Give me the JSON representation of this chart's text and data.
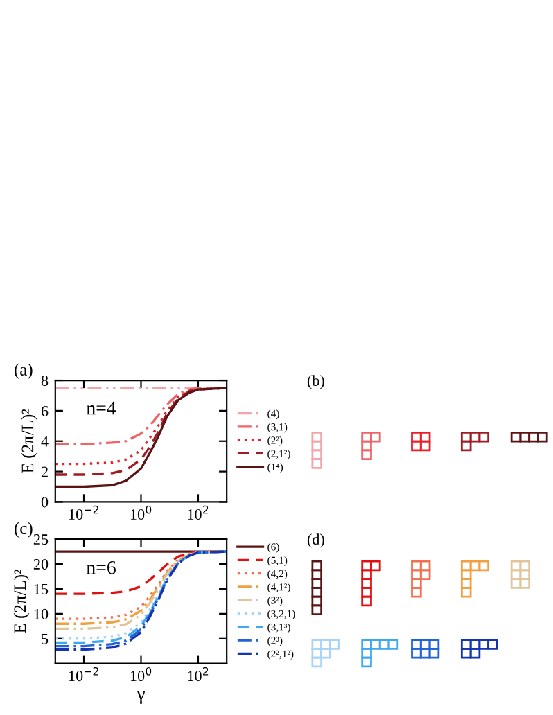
{
  "chart_data": [
    {
      "type": "line",
      "ylabel": "E (2π/L)²",
      "log": "x",
      "legend": "right",
      "grid": false,
      "xlim": [
        0.001,
        1000
      ],
      "xticks": [
        {
          "value": 0.01,
          "label": "10$^{−2}$"
        },
        {
          "value": 1,
          "label": "10$^{0}$"
        },
        {
          "value": 100,
          "label": "10$^{2}$"
        }
      ],
      "ylim": [
        0,
        8
      ],
      "yticks": [
        0,
        2,
        4,
        6,
        8
      ],
      "annotations": [
        "(a)",
        "n=4",
        "(b)"
      ],
      "x": [
        0.001,
        0.01,
        0.1,
        0.3,
        1,
        2,
        4,
        8,
        20,
        50,
        100,
        1000
      ],
      "series": [
        {
          "name": "(4)",
          "color": "#f4a3a8",
          "line_style": "dashdotdot",
          "values": [
            7.5,
            7.5,
            7.5,
            7.5,
            7.5,
            7.5,
            7.5,
            7.5,
            7.5,
            7.5,
            7.5,
            7.5
          ]
        },
        {
          "name": "(3,1)",
          "color": "#f06468",
          "line_style": "dashdot",
          "values": [
            3.8,
            3.8,
            3.9,
            4.0,
            4.5,
            5.0,
            5.7,
            6.4,
            7.1,
            7.4,
            7.5,
            7.5
          ]
        },
        {
          "name": "(2²)",
          "color": "#e8202a",
          "line_style": "dotted",
          "values": [
            2.5,
            2.5,
            2.6,
            2.8,
            3.4,
            4.2,
            5.0,
            6.0,
            6.9,
            7.3,
            7.4,
            7.5
          ]
        },
        {
          "name": "(2,1²)",
          "color": "#a01c24",
          "line_style": "dashed",
          "values": [
            1.8,
            1.8,
            1.9,
            2.1,
            2.8,
            3.6,
            4.6,
            5.8,
            6.8,
            7.3,
            7.4,
            7.5
          ]
        },
        {
          "name": "(1⁴)",
          "color": "#5a1414",
          "line_style": "solid",
          "values": [
            1.0,
            1.0,
            1.1,
            1.4,
            2.2,
            3.2,
            4.3,
            5.6,
            6.7,
            7.2,
            7.4,
            7.5
          ]
        }
      ]
    },
    {
      "type": "line",
      "ylabel": "E (2π/L)²",
      "xlabel": "γ",
      "log": "x",
      "legend": "right",
      "grid": false,
      "xlim": [
        0.001,
        1000
      ],
      "xticks": [
        {
          "value": 0.01,
          "label": "10$^{−2}$"
        },
        {
          "value": 1,
          "label": "10$^{0}$"
        },
        {
          "value": 100,
          "label": "10$^{2}$"
        }
      ],
      "ylim": [
        0,
        25
      ],
      "yticks": [
        5,
        10,
        15,
        20,
        25
      ],
      "annotations": [
        "(c)",
        "n=6",
        "(d)"
      ],
      "x": [
        0.001,
        0.01,
        0.1,
        0.3,
        1,
        2,
        4,
        8,
        20,
        50,
        100,
        1000
      ],
      "series": [
        {
          "name": "(6)",
          "color": "#5a1414",
          "line_style": "solid",
          "values": [
            22.5,
            22.5,
            22.5,
            22.5,
            22.5,
            22.5,
            22.5,
            22.5,
            22.5,
            22.5,
            22.5,
            22.5
          ]
        },
        {
          "name": "(5,1)",
          "color": "#e01010",
          "line_style": "dashed",
          "values": [
            14,
            14,
            14.2,
            14.5,
            15.5,
            16.8,
            18.3,
            19.9,
            21.5,
            22.2,
            22.4,
            22.5
          ]
        },
        {
          "name": "(4,2)",
          "color": "#f07050",
          "line_style": "dotted",
          "values": [
            9,
            9,
            9.3,
            9.8,
            11.4,
            13.5,
            15.8,
            18.5,
            20.9,
            22.0,
            22.4,
            22.5
          ]
        },
        {
          "name": "(4,1²)",
          "color": "#f0a040",
          "line_style": "dashdot",
          "values": [
            8,
            8,
            8.3,
            8.9,
            10.6,
            12.8,
            15.3,
            18.2,
            20.8,
            21.9,
            22.4,
            22.5
          ]
        },
        {
          "name": "(3²)",
          "color": "#e0c49c",
          "line_style": "dashdotdot",
          "values": [
            7,
            7,
            7.3,
            7.9,
            9.8,
            12.1,
            14.8,
            17.9,
            20.6,
            21.9,
            22.3,
            22.5
          ]
        },
        {
          "name": "(3,2,1)",
          "color": "#a8d4f8",
          "line_style": "dotted",
          "values": [
            5,
            5,
            5.4,
            6.1,
            8.2,
            10.8,
            13.8,
            17.3,
            20.4,
            21.8,
            22.3,
            22.5
          ]
        },
        {
          "name": "(3,1³)",
          "color": "#40a8f0",
          "line_style": "dashed",
          "values": [
            4.2,
            4.2,
            4.6,
            5.3,
            7.5,
            10.2,
            13.4,
            17.0,
            20.3,
            21.8,
            22.3,
            22.5
          ]
        },
        {
          "name": "(2³)",
          "color": "#2064d8",
          "line_style": "dashdot",
          "values": [
            3.5,
            3.5,
            3.9,
            4.6,
            6.9,
            9.8,
            13.0,
            16.8,
            20.2,
            21.7,
            22.3,
            22.5
          ]
        },
        {
          "name": "(2²,1²)",
          "color": "#1434b0",
          "line_style": "dashdot",
          "values": [
            2.8,
            2.8,
            3.2,
            4.0,
            6.3,
            9.3,
            12.7,
            16.6,
            20.1,
            21.7,
            22.3,
            22.5
          ]
        }
      ]
    }
  ]
}
